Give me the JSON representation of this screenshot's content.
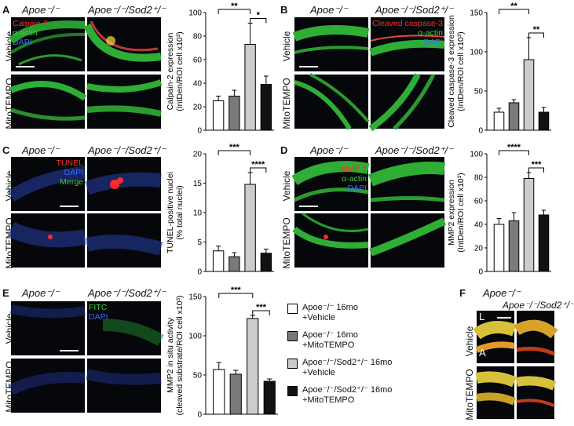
{
  "colors": {
    "white_bar": "#ffffff",
    "dark_gray_bar": "#7a7a7a",
    "light_gray_bar": "#cccccc",
    "black_bar": "#111111",
    "red_stain": "#ff2a2a",
    "green_stain": "#3bd13b",
    "blue_stain": "#3c6cff"
  },
  "panels": {
    "A": {
      "label": "A",
      "col1": "Apoe⁻/⁻",
      "col2": "Apoe⁻/⁻/Sod2⁺/⁻",
      "row1": "Vehicle",
      "row2": "MitoTEMPO",
      "stains": [
        "Calpain-2",
        "α-actin",
        "DAPI"
      ]
    },
    "B": {
      "label": "B",
      "col1": "Apoe⁻/⁻",
      "col2": "Apoe⁻/⁻/Sod2⁺/⁻",
      "row1": "Vehicle",
      "row2": "MitoTEMPO",
      "stains": [
        "Cleaved caspase-3",
        "α-actin",
        "DAPI"
      ]
    },
    "C": {
      "label": "C",
      "col1": "Apoe⁻/⁻",
      "col2": "Apoe⁻/⁻/Sod2⁺/⁻",
      "row1": "Vehicle",
      "row2": "MitoTEMPO",
      "stains": [
        "TUNEL",
        "DAPI",
        "Merge"
      ]
    },
    "D": {
      "label": "D",
      "col1": "Apoe⁻/⁻",
      "col2": "Apoe⁻/⁻/Sod2⁺/⁻",
      "row1": "Vehicle",
      "row2": "MitoTEMPO",
      "stains": [
        "MMP 2",
        "α-actin",
        "DAPI"
      ]
    },
    "E": {
      "label": "E",
      "col1": "Apoe⁻/⁻",
      "col2": "Apoe⁻/⁻/Sod2⁺/⁻",
      "row1": "Vehicle",
      "row2": "MitoTEMPO",
      "stains": [
        "FITC",
        "DAPI"
      ]
    },
    "F": {
      "label": "F",
      "col1": "Apoe⁻/⁻",
      "col2": "Apoe⁻/⁻/Sod2⁺/⁻",
      "row1": "Vehicle",
      "row2": "MitoTEMPO",
      "markers": [
        "L",
        "A"
      ]
    }
  },
  "legend": [
    {
      "line1": "Apoe⁻/⁻ 16mo",
      "line2": "+Vehicle"
    },
    {
      "line1": "Apoe⁻/⁻ 16mo",
      "line2": "+MitoTEMPO"
    },
    {
      "line1": "Apoe⁻/⁻/Sod2⁺/⁻ 16mo",
      "line2": "+Vehicle"
    },
    {
      "line1": "Apoe⁻/⁻/Sod2⁺/⁻ 16mo",
      "line2": "+MitoTEMPO"
    }
  ],
  "chart_data": [
    {
      "id": "A",
      "type": "bar",
      "ylabel": [
        "Calpain-2 expression",
        "(IntDen/ROI cell x10³)"
      ],
      "ylim": [
        0,
        100
      ],
      "yticks": [
        0,
        20,
        40,
        60,
        80,
        100
      ],
      "values": [
        25,
        29,
        73,
        39
      ],
      "errors": [
        4,
        5,
        18,
        7
      ],
      "significance": [
        {
          "from": 0,
          "to": 2,
          "label": "**"
        },
        {
          "from": 2,
          "to": 3,
          "label": "*"
        }
      ]
    },
    {
      "id": "B",
      "type": "bar",
      "ylabel": [
        "Cleaved caspase-3 expression",
        "(IntDen/ROI cell x10³)"
      ],
      "ylim": [
        0,
        150
      ],
      "yticks": [
        0,
        50,
        100,
        150
      ],
      "values": [
        23,
        35,
        90,
        23
      ],
      "errors": [
        5,
        4,
        28,
        6
      ],
      "significance": [
        {
          "from": 0,
          "to": 2,
          "label": "**"
        },
        {
          "from": 2,
          "to": 3,
          "label": "**"
        }
      ]
    },
    {
      "id": "C",
      "type": "bar",
      "ylabel": [
        "TUNEL-positive nuclei",
        "(% total nuclei)"
      ],
      "ylim": [
        0,
        20
      ],
      "yticks": [
        0,
        5,
        10,
        15,
        20
      ],
      "values": [
        3.5,
        2.5,
        14.8,
        3.1
      ],
      "errors": [
        0.8,
        0.7,
        2.0,
        0.7
      ],
      "significance": [
        {
          "from": 0,
          "to": 2,
          "label": "***"
        },
        {
          "from": 2,
          "to": 3,
          "label": "****"
        }
      ]
    },
    {
      "id": "D",
      "type": "bar",
      "ylabel": [
        "MMP2 expression",
        "(IntDen/ROI cell x10³)"
      ],
      "ylim": [
        0,
        100
      ],
      "yticks": [
        0,
        20,
        40,
        60,
        80,
        100
      ],
      "values": [
        40,
        43,
        79,
        48
      ],
      "errors": [
        5,
        7,
        5,
        4
      ],
      "significance": [
        {
          "from": 0,
          "to": 2,
          "label": "****"
        },
        {
          "from": 2,
          "to": 3,
          "label": "***"
        }
      ]
    },
    {
      "id": "E",
      "type": "bar",
      "ylabel": [
        "MMP2 in situ activity",
        "(cleaved substrate/ROI cell x10³)"
      ],
      "ylim": [
        0,
        150
      ],
      "yticks": [
        0,
        50,
        100,
        150
      ],
      "values": [
        57,
        51,
        122,
        42
      ],
      "errors": [
        9,
        5,
        4,
        3
      ],
      "significance": [
        {
          "from": 0,
          "to": 2,
          "label": "***"
        },
        {
          "from": 2,
          "to": 3,
          "label": "***"
        }
      ]
    }
  ]
}
